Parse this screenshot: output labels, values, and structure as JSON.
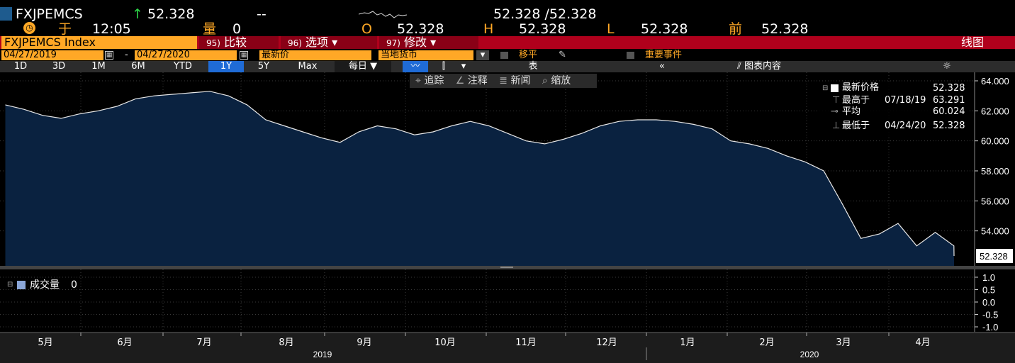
{
  "header": {
    "ticker": "FXJPEMCS",
    "arrow": "↑",
    "last": "52.328",
    "change": "--",
    "bid_ask": "52.328 /52.328",
    "time_prefix": "于",
    "time": "12:05",
    "volume_label": "量",
    "volume": "0",
    "open_label": "O",
    "open": "52.328",
    "high_label": "H",
    "high": "52.328",
    "low_label": "L",
    "low": "52.328",
    "prev_label": "前",
    "prev": "52.328"
  },
  "toolbar": {
    "index_name": "FXJPEMCS Index",
    "compare_num": "95)",
    "compare": "比较",
    "options_num": "96)",
    "options": "选项",
    "modify_num": "97)",
    "modify": "修改",
    "chart_type": "线图"
  },
  "settings": {
    "date_from": "04/27/2019",
    "date_sep": "-",
    "date_to": "04/27/2020",
    "field": "最新价",
    "currency": "当地货币",
    "pan": "移平",
    "events": "重要事件"
  },
  "ranges": [
    "1D",
    "3D",
    "1M",
    "6M",
    "YTD",
    "1Y",
    "5Y",
    "Max"
  ],
  "active_range": "1Y",
  "period": "每日",
  "table_label": "表",
  "chart_content": "图表内容",
  "subtools": [
    "追踪",
    "注释",
    "新闻",
    "缩放"
  ],
  "legend": {
    "last_label": "最新价格",
    "last_value": "52.328",
    "high_label": "最高于",
    "high_date": "07/18/19",
    "high_value": "63.291",
    "avg_label": "平均",
    "avg_value": "60.024",
    "low_label": "最低于",
    "low_date": "04/24/20",
    "low_value": "52.328"
  },
  "volume_panel": {
    "label": "成交量",
    "value": "0"
  },
  "colors": {
    "area_fill": "#0a2240",
    "line": "#e8e8e8",
    "accent": "#ffa826",
    "red": "#b0001c",
    "active": "#1f6bd6"
  },
  "chart_data": {
    "type": "area",
    "ylim": [
      52,
      64
    ],
    "yticks": [
      "64.000",
      "62.000",
      "60.000",
      "58.000",
      "56.000",
      "54.000"
    ],
    "last_label": "52.328",
    "months": [
      "5月",
      "6月",
      "7月",
      "8月",
      "9月",
      "10月",
      "11月",
      "12月",
      "1月",
      "2月",
      "3月",
      "4月"
    ],
    "years": [
      "2019",
      "2020"
    ],
    "vol_ticks": [
      "1.0",
      "0.5",
      "0.0",
      "-0.5",
      "-1.0"
    ],
    "x": [
      "2019-04-29",
      "2019-05-06",
      "2019-05-13",
      "2019-05-20",
      "2019-05-27",
      "2019-06-03",
      "2019-06-10",
      "2019-06-17",
      "2019-06-24",
      "2019-07-01",
      "2019-07-08",
      "2019-07-15",
      "2019-07-22",
      "2019-07-29",
      "2019-08-05",
      "2019-08-12",
      "2019-08-19",
      "2019-08-26",
      "2019-09-02",
      "2019-09-09",
      "2019-09-16",
      "2019-09-23",
      "2019-09-30",
      "2019-10-07",
      "2019-10-14",
      "2019-10-21",
      "2019-10-28",
      "2019-11-04",
      "2019-11-11",
      "2019-11-18",
      "2019-11-25",
      "2019-12-02",
      "2019-12-09",
      "2019-12-16",
      "2019-12-23",
      "2019-12-30",
      "2020-01-06",
      "2020-01-13",
      "2020-01-20",
      "2020-01-27",
      "2020-02-03",
      "2020-02-10",
      "2020-02-17",
      "2020-02-24",
      "2020-03-02",
      "2020-03-09",
      "2020-03-16",
      "2020-03-23",
      "2020-03-30",
      "2020-04-06",
      "2020-04-13",
      "2020-04-20",
      "2020-04-24"
    ],
    "values": [
      62.4,
      62.1,
      61.7,
      61.5,
      61.8,
      62.0,
      62.3,
      62.8,
      63.0,
      63.1,
      63.2,
      63.3,
      63.0,
      62.4,
      61.4,
      61.0,
      60.6,
      60.2,
      59.9,
      60.6,
      61.0,
      60.8,
      60.4,
      60.6,
      61.0,
      61.3,
      61.0,
      60.5,
      60.0,
      59.8,
      60.1,
      60.5,
      61.0,
      61.3,
      61.4,
      61.4,
      61.3,
      61.1,
      60.8,
      60.0,
      59.8,
      59.5,
      59.0,
      58.6,
      58.0,
      55.8,
      53.5,
      53.8,
      54.5,
      53.0,
      53.9,
      53.0,
      52.33
    ]
  }
}
